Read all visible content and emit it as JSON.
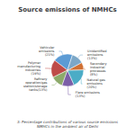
{
  "chart_data": {
    "type": "pie",
    "title": "Source emissions of NMHCs",
    "subtitle": "3: Percentage contributions of various source emissions\nNMHCs in the ambient air of Delhi",
    "categories": [
      "Vehicular\nemissions\n(21%)",
      "Polymer\nmanufacturing\nindustries\n(19%)",
      "Refinery\noperation/gas\nstation/storage\ntanks(13%)",
      "Flare emissions\n(13%)",
      "Natural gas\nemissions\n(20%)",
      "Secondary\nindustrial\nprocesses\n(8%)",
      "Unidentified\nemissions\n(13%)"
    ],
    "values": [
      21,
      19,
      13,
      13,
      20,
      8,
      13
    ],
    "colors": [
      "#5B9BD5",
      "#BE4B48",
      "#8DAA6A",
      "#7B5EA7",
      "#4BACC6",
      "#D07032",
      "#7BA7C7"
    ]
  }
}
